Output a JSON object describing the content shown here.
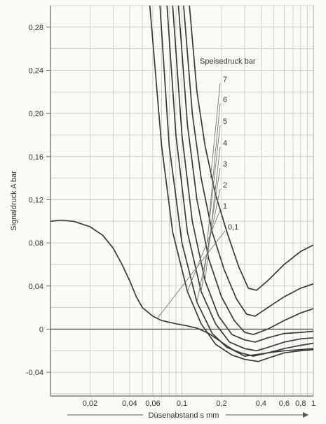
{
  "chart_data": {
    "type": "line",
    "xscale": "log",
    "xlabel": "Düsenabstand s mm",
    "ylabel": "Signaldruck A bar",
    "legend_title": "Speisedruck bar",
    "legend_placement": "top-right",
    "xlim": [
      0.01,
      1.0
    ],
    "ylim": [
      -0.062,
      0.3
    ],
    "grid": true,
    "x_ticks": [
      {
        "value": 0.02,
        "label": "0,02"
      },
      {
        "value": 0.04,
        "label": "0,04"
      },
      {
        "value": 0.06,
        "label": "0,06"
      },
      {
        "value": 0.1,
        "label": "0,1"
      },
      {
        "value": 0.2,
        "label": "0,2"
      },
      {
        "value": 0.4,
        "label": "0,4"
      },
      {
        "value": 0.6,
        "label": "0,6"
      },
      {
        "value": 0.8,
        "label": "0,8"
      },
      {
        "value": 1.0,
        "label": "1"
      }
    ],
    "y_ticks": [
      {
        "value": 0.28,
        "label": "0,28"
      },
      {
        "value": 0.24,
        "label": "0,24"
      },
      {
        "value": 0.2,
        "label": "0,20"
      },
      {
        "value": 0.16,
        "label": "0,16"
      },
      {
        "value": 0.12,
        "label": "0,12"
      },
      {
        "value": 0.08,
        "label": "0,08"
      },
      {
        "value": 0.04,
        "label": "0,04"
      },
      {
        "value": 0.0,
        "label": "0"
      },
      {
        "value": -0.04,
        "label": "-0,04"
      }
    ],
    "series": [
      {
        "name": "7",
        "points": [
          [
            0.114,
            0.3
          ],
          [
            0.13,
            0.22
          ],
          [
            0.15,
            0.17
          ],
          [
            0.18,
            0.125
          ],
          [
            0.22,
            0.09
          ],
          [
            0.27,
            0.058
          ],
          [
            0.32,
            0.038
          ],
          [
            0.37,
            0.036
          ],
          [
            0.45,
            0.045
          ],
          [
            0.6,
            0.06
          ],
          [
            0.8,
            0.072
          ],
          [
            1.0,
            0.078
          ]
        ]
      },
      {
        "name": "6",
        "points": [
          [
            0.103,
            0.3
          ],
          [
            0.12,
            0.2
          ],
          [
            0.14,
            0.14
          ],
          [
            0.17,
            0.09
          ],
          [
            0.21,
            0.055
          ],
          [
            0.26,
            0.028
          ],
          [
            0.31,
            0.014
          ],
          [
            0.36,
            0.012
          ],
          [
            0.45,
            0.02
          ],
          [
            0.6,
            0.03
          ],
          [
            0.8,
            0.038
          ],
          [
            1.0,
            0.042
          ]
        ]
      },
      {
        "name": "5",
        "points": [
          [
            0.094,
            0.3
          ],
          [
            0.11,
            0.19
          ],
          [
            0.13,
            0.12
          ],
          [
            0.16,
            0.065
          ],
          [
            0.2,
            0.03
          ],
          [
            0.25,
            0.008
          ],
          [
            0.3,
            -0.003
          ],
          [
            0.35,
            -0.005
          ],
          [
            0.45,
            0.0
          ],
          [
            0.6,
            0.008
          ],
          [
            0.8,
            0.015
          ],
          [
            1.0,
            0.019
          ]
        ]
      },
      {
        "name": "4",
        "points": [
          [
            0.085,
            0.3
          ],
          [
            0.1,
            0.18
          ],
          [
            0.12,
            0.1
          ],
          [
            0.15,
            0.045
          ],
          [
            0.19,
            0.012
          ],
          [
            0.24,
            -0.005
          ],
          [
            0.3,
            -0.01
          ],
          [
            0.36,
            -0.012
          ],
          [
            0.45,
            -0.008
          ],
          [
            0.6,
            -0.004
          ],
          [
            0.8,
            -0.003
          ],
          [
            1.0,
            -0.002
          ]
        ]
      },
      {
        "name": "3",
        "points": [
          [
            0.077,
            0.3
          ],
          [
            0.09,
            0.18
          ],
          [
            0.11,
            0.09
          ],
          [
            0.14,
            0.035
          ],
          [
            0.18,
            0.005
          ],
          [
            0.23,
            -0.012
          ],
          [
            0.3,
            -0.018
          ],
          [
            0.37,
            -0.02
          ],
          [
            0.45,
            -0.017
          ],
          [
            0.6,
            -0.012
          ],
          [
            0.8,
            -0.009
          ],
          [
            1.0,
            -0.008
          ]
        ]
      },
      {
        "name": "2",
        "points": [
          [
            0.068,
            0.3
          ],
          [
            0.08,
            0.17
          ],
          [
            0.1,
            0.08
          ],
          [
            0.13,
            0.025
          ],
          [
            0.17,
            -0.004
          ],
          [
            0.22,
            -0.017
          ],
          [
            0.28,
            -0.022
          ],
          [
            0.35,
            -0.025
          ],
          [
            0.45,
            -0.022
          ],
          [
            0.6,
            -0.018
          ],
          [
            0.8,
            -0.015
          ],
          [
            1.0,
            -0.013
          ]
        ]
      },
      {
        "name": "1",
        "points": [
          [
            0.057,
            0.3
          ],
          [
            0.07,
            0.17
          ],
          [
            0.085,
            0.09
          ],
          [
            0.11,
            0.035
          ],
          [
            0.14,
            0.005
          ],
          [
            0.18,
            -0.014
          ],
          [
            0.24,
            -0.024
          ],
          [
            0.3,
            -0.028
          ],
          [
            0.38,
            -0.03
          ],
          [
            0.45,
            -0.027
          ],
          [
            0.6,
            -0.022
          ],
          [
            0.8,
            -0.02
          ],
          [
            1.0,
            -0.019
          ]
        ]
      },
      {
        "name": "0,1",
        "points": [
          [
            0.01,
            0.1
          ],
          [
            0.012,
            0.101
          ],
          [
            0.015,
            0.1
          ],
          [
            0.02,
            0.095
          ],
          [
            0.025,
            0.087
          ],
          [
            0.03,
            0.075
          ],
          [
            0.035,
            0.06
          ],
          [
            0.04,
            0.045
          ],
          [
            0.045,
            0.03
          ],
          [
            0.05,
            0.02
          ],
          [
            0.06,
            0.012
          ],
          [
            0.07,
            0.008
          ],
          [
            0.09,
            0.005
          ],
          [
            0.11,
            0.003
          ],
          [
            0.13,
            0.001
          ],
          [
            0.16,
            -0.004
          ],
          [
            0.2,
            -0.012
          ],
          [
            0.25,
            -0.02
          ],
          [
            0.3,
            -0.025
          ],
          [
            0.35,
            -0.024
          ],
          [
            0.45,
            -0.022
          ],
          [
            0.6,
            -0.02
          ],
          [
            0.8,
            -0.019
          ],
          [
            1.0,
            -0.018
          ]
        ]
      }
    ],
    "reference_line": {
      "y": 0.0
    }
  }
}
